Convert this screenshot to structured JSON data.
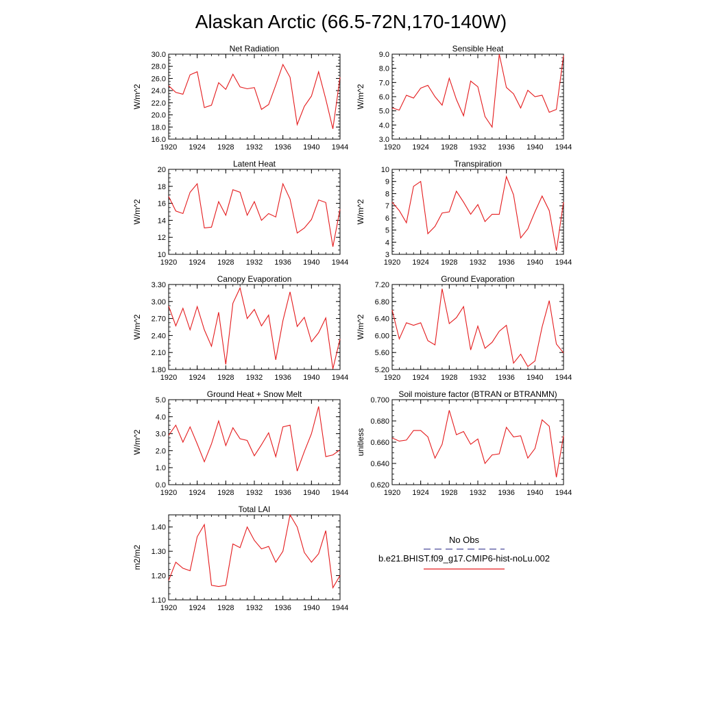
{
  "figure": {
    "title": "Alaskan Arctic (66.5-72N,170-140W)"
  },
  "legend": {
    "obs_label": "No Obs",
    "model_label": "b.e21.BHIST.f09_g17.CMIP6-hist-noLu.002",
    "obs_color": "#4a4a9a",
    "model_color": "#e41a1c"
  },
  "chart_data": [
    {
      "type": "line",
      "title": "Net Radiation",
      "ylabel": "W/m^2",
      "xlim": [
        1920,
        1944
      ],
      "ylim": [
        16.0,
        30.0
      ],
      "xticks": [
        "1920",
        "1924",
        "1928",
        "1932",
        "1936",
        "1940",
        "1944"
      ],
      "yticks": [
        "16.0",
        "18.0",
        "20.0",
        "22.0",
        "24.0",
        "26.0",
        "28.0",
        "30.0"
      ],
      "series": [
        {
          "x_start": 1920,
          "values": [
            24.8,
            23.7,
            23.4,
            26.6,
            27.1,
            21.2,
            21.6,
            25.3,
            24.2,
            26.7,
            24.6,
            24.3,
            24.5,
            20.9,
            21.7,
            24.9,
            28.3,
            26.2,
            18.4,
            21.4,
            23.1,
            27.1,
            22.6,
            17.7,
            26.2
          ],
          "color": "#e41a1c"
        }
      ]
    },
    {
      "type": "line",
      "title": "Sensible Heat",
      "ylabel": "W/m^2",
      "xlim": [
        1920,
        1944
      ],
      "ylim": [
        3.0,
        9.0
      ],
      "xticks": [
        "1920",
        "1924",
        "1928",
        "1932",
        "1936",
        "1940",
        "1944"
      ],
      "yticks": [
        "3.0",
        "4.0",
        "5.0",
        "6.0",
        "7.0",
        "8.0",
        "9.0"
      ],
      "series": [
        {
          "x_start": 1920,
          "values": [
            5.2,
            5.05,
            6.1,
            5.9,
            6.6,
            6.8,
            6.0,
            5.4,
            7.3,
            5.8,
            4.65,
            7.1,
            6.7,
            4.6,
            3.85,
            9.0,
            6.65,
            6.2,
            5.2,
            6.45,
            6.0,
            6.1,
            4.9,
            5.1,
            8.9
          ],
          "color": "#e41a1c"
        }
      ]
    },
    {
      "type": "line",
      "title": "Latent Heat",
      "ylabel": "W/m^2",
      "xlim": [
        1920,
        1944
      ],
      "ylim": [
        10,
        20
      ],
      "xticks": [
        "1920",
        "1924",
        "1928",
        "1932",
        "1936",
        "1940",
        "1944"
      ],
      "yticks": [
        "10",
        "12",
        "14",
        "16",
        "18",
        "20"
      ],
      "series": [
        {
          "x_start": 1920,
          "values": [
            16.8,
            15.1,
            14.8,
            17.3,
            18.3,
            13.1,
            13.2,
            16.2,
            14.6,
            17.6,
            17.3,
            14.6,
            16.2,
            14.0,
            14.8,
            14.4,
            18.3,
            16.5,
            12.5,
            13.1,
            14.1,
            16.4,
            16.1,
            10.9,
            15.3
          ],
          "color": "#e41a1c"
        }
      ]
    },
    {
      "type": "line",
      "title": "Transpiration",
      "ylabel": "W/m^2",
      "xlim": [
        1920,
        1944
      ],
      "ylim": [
        3,
        10
      ],
      "xticks": [
        "1920",
        "1924",
        "1928",
        "1932",
        "1936",
        "1940",
        "1944"
      ],
      "yticks": [
        "3",
        "4",
        "5",
        "6",
        "7",
        "8",
        "9",
        "10"
      ],
      "series": [
        {
          "x_start": 1920,
          "values": [
            7.3,
            6.6,
            5.6,
            8.6,
            9.0,
            4.7,
            5.3,
            6.4,
            6.5,
            8.2,
            7.3,
            6.3,
            7.1,
            5.7,
            6.3,
            6.3,
            9.4,
            7.9,
            4.35,
            5.1,
            6.5,
            7.8,
            6.6,
            3.3,
            7.3
          ],
          "color": "#e41a1c"
        }
      ]
    },
    {
      "type": "line",
      "title": "Canopy Evaporation",
      "ylabel": "W/m^2",
      "xlim": [
        1920,
        1944
      ],
      "ylim": [
        1.8,
        3.3
      ],
      "xticks": [
        "1920",
        "1924",
        "1928",
        "1932",
        "1936",
        "1940",
        "1944"
      ],
      "yticks": [
        "1.80",
        "2.10",
        "2.40",
        "2.70",
        "3.00",
        "3.30"
      ],
      "series": [
        {
          "x_start": 1920,
          "values": [
            2.92,
            2.57,
            2.88,
            2.5,
            2.91,
            2.5,
            2.21,
            2.81,
            1.89,
            2.97,
            3.24,
            2.7,
            2.86,
            2.57,
            2.76,
            1.97,
            2.66,
            3.17,
            2.56,
            2.72,
            2.29,
            2.45,
            2.71,
            1.81,
            2.34
          ],
          "color": "#e41a1c"
        }
      ]
    },
    {
      "type": "line",
      "title": "Ground Evaporation",
      "ylabel": "W/m^2",
      "xlim": [
        1920,
        1944
      ],
      "ylim": [
        5.2,
        7.2
      ],
      "xticks": [
        "1920",
        "1924",
        "1928",
        "1932",
        "1936",
        "1940",
        "1944"
      ],
      "yticks": [
        "5.20",
        "5.60",
        "6.00",
        "6.40",
        "6.80",
        "7.20"
      ],
      "series": [
        {
          "x_start": 1920,
          "values": [
            6.6,
            5.92,
            6.3,
            6.24,
            6.3,
            5.88,
            5.78,
            7.1,
            6.28,
            6.42,
            6.68,
            5.66,
            6.22,
            5.7,
            5.84,
            6.1,
            6.24,
            5.35,
            5.56,
            5.27,
            5.4,
            6.2,
            6.82,
            5.8,
            5.59
          ],
          "color": "#e41a1c"
        }
      ]
    },
    {
      "type": "line",
      "title": "Ground Heat + Snow Melt",
      "ylabel": "W/m^2",
      "xlim": [
        1920,
        1944
      ],
      "ylim": [
        0.0,
        5.0
      ],
      "xticks": [
        "1920",
        "1924",
        "1928",
        "1932",
        "1936",
        "1940",
        "1944"
      ],
      "yticks": [
        "0.0",
        "1.0",
        "2.0",
        "3.0",
        "4.0",
        "5.0"
      ],
      "series": [
        {
          "x_start": 1920,
          "values": [
            2.9,
            3.5,
            2.5,
            3.4,
            2.4,
            1.35,
            2.4,
            3.75,
            2.3,
            3.35,
            2.7,
            2.6,
            1.7,
            2.35,
            3.05,
            1.65,
            3.4,
            3.5,
            0.8,
            1.95,
            3.0,
            4.6,
            1.65,
            1.75,
            2.05
          ],
          "color": "#e41a1c"
        }
      ]
    },
    {
      "type": "line",
      "title": "Soil moisture factor (BTRAN or BTRANMN)",
      "ylabel": "unitless",
      "xlim": [
        1920,
        1944
      ],
      "ylim": [
        0.62,
        0.7
      ],
      "xticks": [
        "1920",
        "1924",
        "1928",
        "1932",
        "1936",
        "1940",
        "1944"
      ],
      "yticks": [
        "0.620",
        "0.640",
        "0.660",
        "0.680",
        "0.700"
      ],
      "series": [
        {
          "x_start": 1920,
          "values": [
            0.664,
            0.661,
            0.662,
            0.671,
            0.671,
            0.665,
            0.645,
            0.658,
            0.69,
            0.667,
            0.67,
            0.658,
            0.663,
            0.64,
            0.648,
            0.649,
            0.674,
            0.665,
            0.666,
            0.645,
            0.654,
            0.681,
            0.675,
            0.627,
            0.666
          ],
          "color": "#e41a1c"
        }
      ]
    },
    {
      "type": "line",
      "title": "Total LAI",
      "ylabel": "m2/m2",
      "xlim": [
        1920,
        1944
      ],
      "ylim": [
        1.1,
        1.45
      ],
      "xticks": [
        "1920",
        "1924",
        "1928",
        "1932",
        "1936",
        "1940",
        "1944"
      ],
      "yticks": [
        "1.10",
        "1.20",
        "1.30",
        "1.40"
      ],
      "series": [
        {
          "x_start": 1920,
          "values": [
            1.18,
            1.255,
            1.23,
            1.22,
            1.36,
            1.41,
            1.16,
            1.155,
            1.16,
            1.33,
            1.315,
            1.4,
            1.345,
            1.31,
            1.32,
            1.255,
            1.3,
            1.45,
            1.4,
            1.295,
            1.255,
            1.29,
            1.385,
            1.15,
            1.2
          ],
          "color": "#e41a1c"
        }
      ]
    }
  ]
}
